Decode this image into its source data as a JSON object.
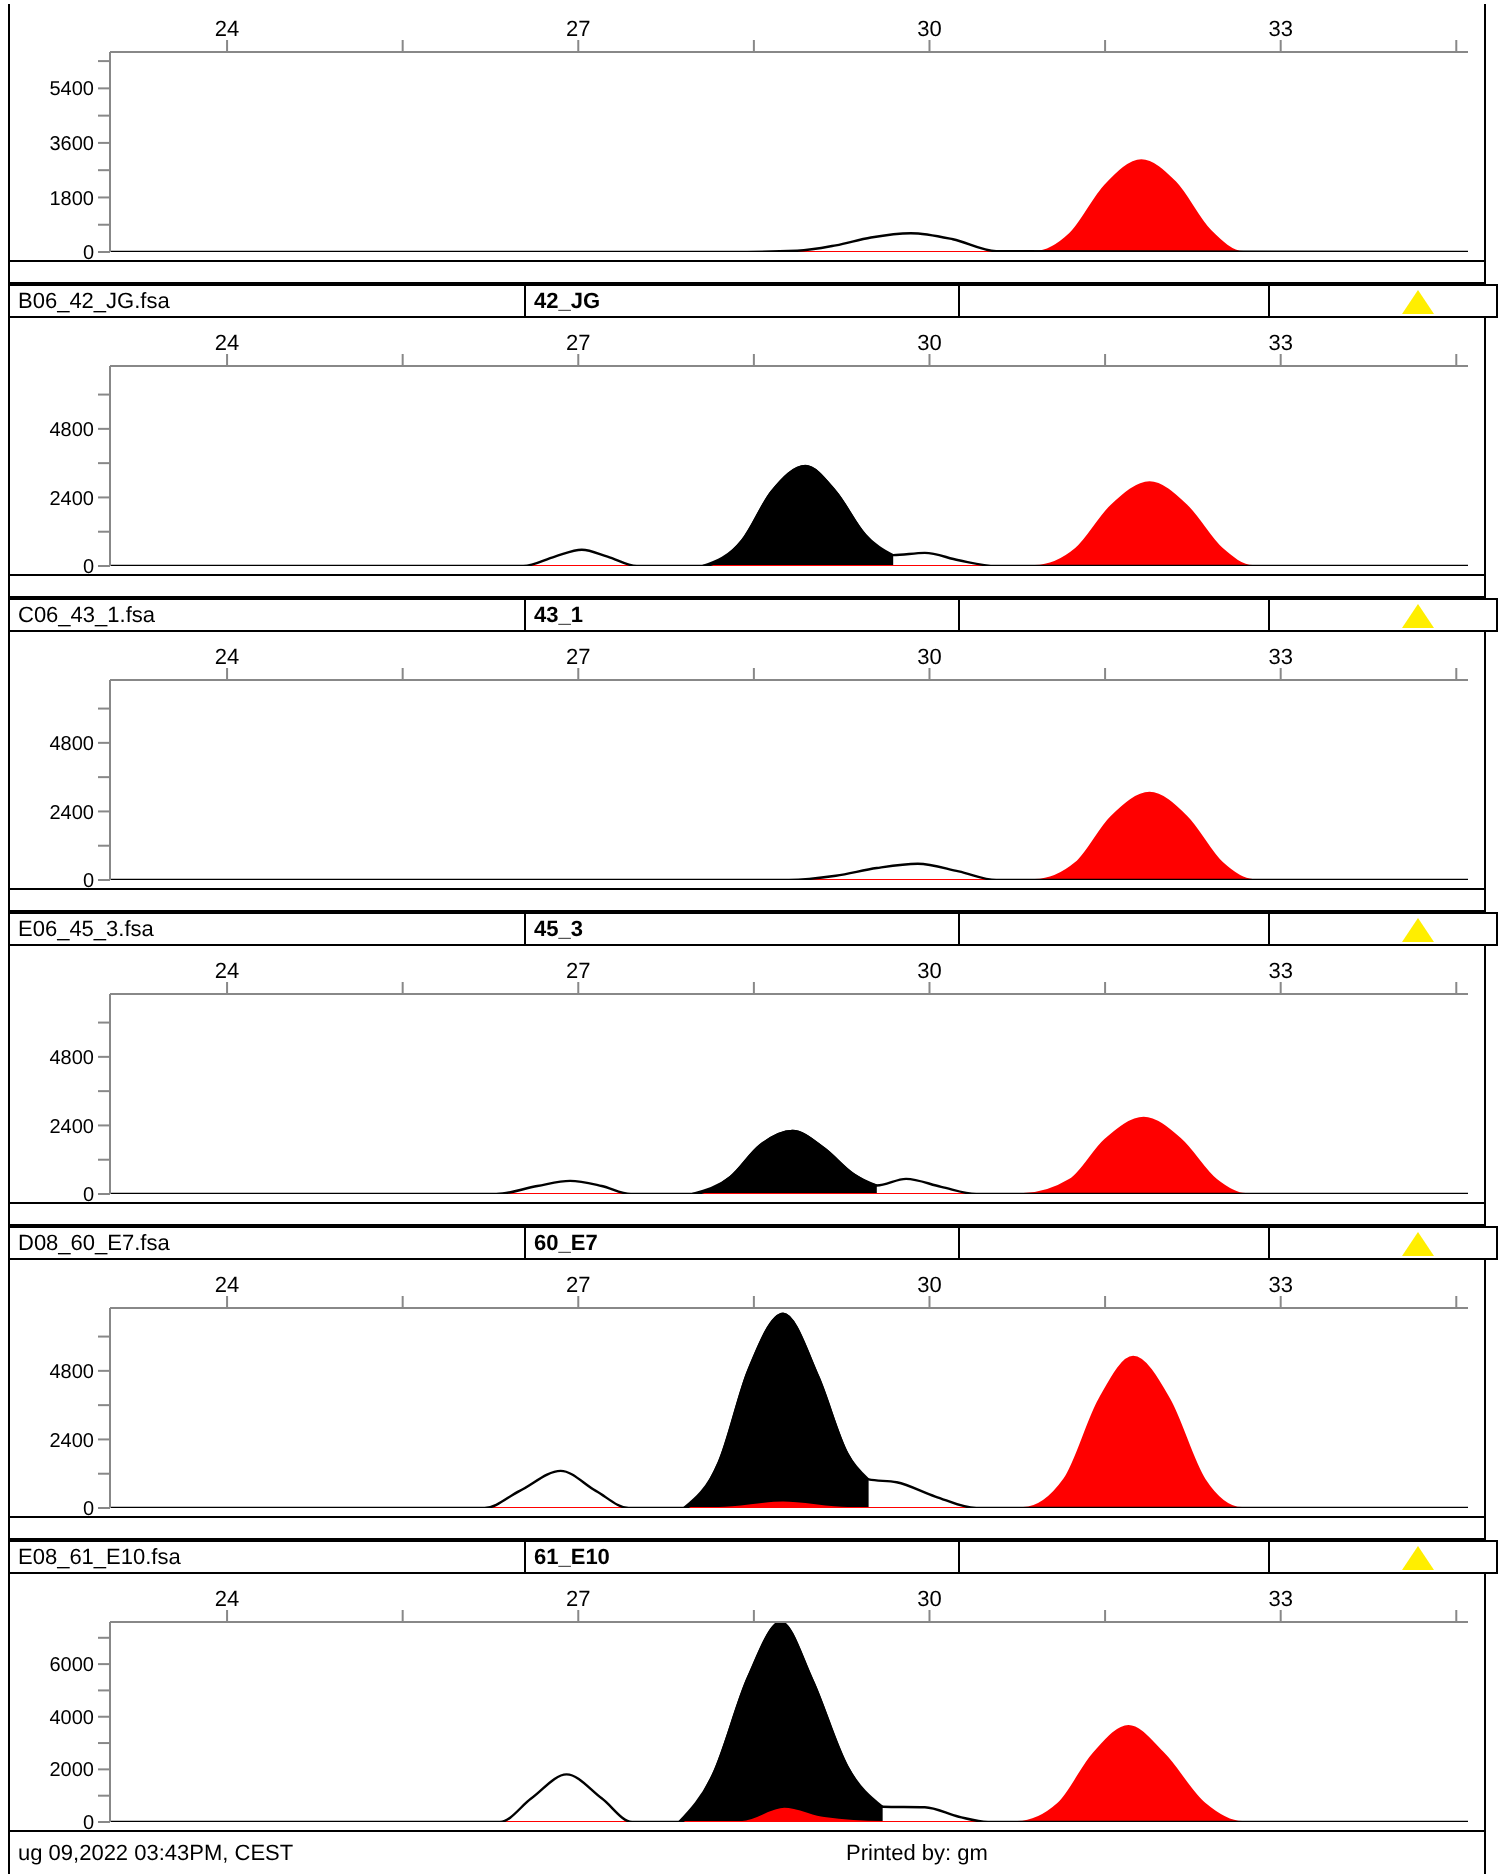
{
  "chart_data": [
    {
      "type": "area",
      "xlim": [
        23,
        34.6
      ],
      "xticks": [
        24,
        {
          "value": 25.5,
          "label": null
        },
        27,
        {
          "value": 28.5,
          "label": null
        },
        30,
        {
          "value": 31.5,
          "label": null
        },
        33,
        {
          "value": 34.5,
          "label": null
        }
      ],
      "ylim": [
        0,
        6600
      ],
      "yticks": [
        0,
        {
          "value": 900,
          "label": null
        },
        1800,
        {
          "value": 2700,
          "label": null
        },
        3600,
        {
          "value": 4500,
          "label": null
        },
        5400,
        {
          "value": 6300,
          "label": null
        }
      ],
      "series": [
        {
          "type": "line",
          "color": "#000000",
          "x": [
            23,
            28.3,
            28.87,
            29.2,
            29.5,
            29.84,
            30.2,
            30.57,
            34.6
          ],
          "values": [
            0,
            0,
            40,
            220,
            480,
            620,
            420,
            30,
            0
          ]
        },
        {
          "type": "area",
          "color": "#ff0000",
          "x": [
            23,
            30.9,
            31.2,
            31.5,
            31.81,
            32.1,
            32.4,
            32.68,
            34.6
          ],
          "values": [
            0,
            0,
            600,
            2200,
            3030,
            2300,
            700,
            0,
            0
          ]
        }
      ]
    },
    {
      "type": "area",
      "title": "B06_42_JG.fsa",
      "subtitle": "42_JG",
      "xlim": [
        23,
        34.6
      ],
      "xticks": [
        24,
        {
          "value": 25.5,
          "label": null
        },
        27,
        {
          "value": 28.5,
          "label": null
        },
        30,
        {
          "value": 31.5,
          "label": null
        },
        33,
        {
          "value": 34.5,
          "label": null
        }
      ],
      "ylim": [
        0,
        7000
      ],
      "yticks": [
        0,
        {
          "value": 1200,
          "label": null
        },
        2400,
        {
          "value": 3600,
          "label": null
        },
        4800,
        {
          "value": 6000,
          "label": null
        }
      ],
      "series": [
        {
          "type": "line",
          "color": "#000000",
          "x": [
            23,
            26.53,
            26.8,
            27.03,
            27.25,
            27.5,
            28.06,
            28.4,
            28.65,
            28.94,
            29.2,
            29.45,
            29.69,
            29.96,
            30.25,
            30.57,
            34.6
          ],
          "values": [
            0,
            0,
            330,
            570,
            330,
            0,
            0,
            900,
            2600,
            3500,
            2600,
            1100,
            380,
            460,
            200,
            0,
            0
          ]
        },
        {
          "type": "area",
          "color": "#000000",
          "x": [
            28.06,
            28.4,
            28.65,
            28.94,
            29.2,
            29.45,
            29.69
          ],
          "values": [
            0,
            900,
            2600,
            3500,
            2600,
            1100,
            380
          ]
        },
        {
          "type": "area",
          "color": "#ff0000",
          "x": [
            23,
            30.9,
            31.25,
            31.55,
            31.88,
            32.2,
            32.5,
            32.76,
            34.6
          ],
          "values": [
            0,
            0,
            600,
            2100,
            2930,
            2100,
            600,
            0,
            0
          ]
        }
      ]
    },
    {
      "type": "area",
      "title": "C06_43_1.fsa",
      "subtitle": "43_1",
      "xlim": [
        23,
        34.6
      ],
      "xticks": [
        24,
        {
          "value": 25.5,
          "label": null
        },
        27,
        {
          "value": 28.5,
          "label": null
        },
        30,
        {
          "value": 31.5,
          "label": null
        },
        33,
        {
          "value": 34.5,
          "label": null
        }
      ],
      "ylim": [
        0,
        7000
      ],
      "yticks": [
        0,
        {
          "value": 1200,
          "label": null
        },
        2400,
        {
          "value": 3600,
          "label": null
        },
        4800,
        {
          "value": 6000,
          "label": null
        }
      ],
      "series": [
        {
          "type": "line",
          "color": "#000000",
          "x": [
            23,
            28.8,
            29.2,
            29.55,
            29.9,
            30.25,
            30.57,
            34.6
          ],
          "values": [
            0,
            0,
            150,
            420,
            570,
            300,
            0,
            0
          ]
        },
        {
          "type": "area",
          "color": "#ff0000",
          "x": [
            23,
            30.9,
            31.25,
            31.55,
            31.88,
            32.2,
            32.5,
            32.76,
            34.6
          ],
          "values": [
            0,
            0,
            600,
            2200,
            3050,
            2200,
            600,
            0,
            0
          ]
        }
      ]
    },
    {
      "type": "area",
      "title": "E06_45_3.fsa",
      "subtitle": "45_3",
      "xlim": [
        23,
        34.6
      ],
      "xticks": [
        24,
        {
          "value": 25.5,
          "label": null
        },
        27,
        {
          "value": 28.5,
          "label": null
        },
        30,
        {
          "value": 31.5,
          "label": null
        },
        33,
        {
          "value": 34.5,
          "label": null
        }
      ],
      "ylim": [
        0,
        7000
      ],
      "yticks": [
        0,
        {
          "value": 1200,
          "label": null
        },
        2400,
        {
          "value": 3600,
          "label": null
        },
        4800,
        {
          "value": 6000,
          "label": null
        }
      ],
      "series": [
        {
          "type": "line",
          "color": "#000000",
          "x": [
            23,
            26.3,
            26.65,
            26.93,
            27.2,
            27.45,
            27.97,
            28.3,
            28.55,
            28.83,
            29.1,
            29.35,
            29.55,
            29.8,
            30.1,
            30.4,
            34.6
          ],
          "values": [
            0,
            0,
            280,
            460,
            280,
            0,
            0,
            600,
            1700,
            2210,
            1600,
            700,
            300,
            530,
            250,
            0,
            0
          ]
        },
        {
          "type": "area",
          "color": "#000000",
          "x": [
            27.97,
            28.3,
            28.55,
            28.83,
            29.1,
            29.35,
            29.55
          ],
          "values": [
            0,
            600,
            1700,
            2210,
            1600,
            700,
            300
          ]
        },
        {
          "type": "area",
          "color": "#ff0000",
          "x": [
            23,
            30.8,
            31.2,
            31.5,
            31.83,
            32.15,
            32.45,
            32.7,
            34.6
          ],
          "values": [
            0,
            0,
            500,
            1900,
            2670,
            1900,
            500,
            0,
            0
          ]
        }
      ]
    },
    {
      "type": "area",
      "title": "D08_60_E7.fsa",
      "subtitle": "60_E7",
      "xlim": [
        23,
        34.6
      ],
      "xticks": [
        24,
        {
          "value": 25.5,
          "label": null
        },
        27,
        {
          "value": 28.5,
          "label": null
        },
        30,
        {
          "value": 31.5,
          "label": null
        },
        33,
        {
          "value": 34.5,
          "label": null
        }
      ],
      "ylim": [
        0,
        7000
      ],
      "yticks": [
        0,
        {
          "value": 1200,
          "label": null
        },
        2400,
        {
          "value": 3600,
          "label": null
        },
        4800,
        {
          "value": 6000,
          "label": null
        }
      ],
      "series": [
        {
          "type": "line",
          "color": "#000000",
          "x": [
            23,
            26.2,
            26.5,
            26.85,
            27.15,
            27.43,
            27.9,
            28.2,
            28.45,
            28.75,
            29.05,
            29.3,
            29.48,
            29.72,
            30.05,
            30.4,
            34.6
          ],
          "values": [
            0,
            0,
            600,
            1300,
            600,
            0,
            0,
            1600,
            4800,
            6800,
            4600,
            1900,
            1000,
            900,
            400,
            0,
            0
          ]
        },
        {
          "type": "area",
          "color": "#000000",
          "x": [
            27.9,
            28.2,
            28.45,
            28.75,
            29.05,
            29.3,
            29.48
          ],
          "values": [
            0,
            1600,
            4800,
            6800,
            4600,
            1900,
            1000
          ]
        },
        {
          "type": "area",
          "color": "#ff0000",
          "x": [
            23,
            28.2,
            28.75,
            29.3,
            30.8,
            31.15,
            31.45,
            31.74,
            32.05,
            32.35,
            32.67,
            34.6
          ],
          "values": [
            0,
            0,
            190,
            0,
            0,
            1000,
            3800,
            5290,
            3800,
            1000,
            0,
            0
          ]
        }
      ]
    },
    {
      "type": "area",
      "title": "E08_61_E10.fsa",
      "subtitle": "61_E10",
      "xlim": [
        23,
        34.6
      ],
      "xticks": [
        24,
        {
          "value": 25.5,
          "label": null
        },
        27,
        {
          "value": 28.5,
          "label": null
        },
        30,
        {
          "value": 31.5,
          "label": null
        },
        33,
        {
          "value": 34.5,
          "label": null
        }
      ],
      "ylim": [
        0,
        7600
      ],
      "yticks": [
        0,
        {
          "value": 1000,
          "label": null
        },
        2000,
        {
          "value": 3000,
          "label": null
        },
        4000,
        {
          "value": 5000,
          "label": null
        },
        6000,
        {
          "value": 7000,
          "label": null
        }
      ],
      "annotations": [
        "ug 09,2022 03:43PM, CEST",
        "Printed by: gm"
      ],
      "series": [
        {
          "type": "line",
          "color": "#000000",
          "x": [
            23,
            26.33,
            26.6,
            26.9,
            27.2,
            27.46,
            27.86,
            28.15,
            28.45,
            28.73,
            29.0,
            29.3,
            29.6,
            29.96,
            30.25,
            30.5,
            34.6
          ],
          "values": [
            0,
            0,
            900,
            1810,
            900,
            0,
            0,
            1800,
            5500,
            7600,
            5400,
            2100,
            580,
            560,
            200,
            0,
            0
          ]
        },
        {
          "type": "area",
          "color": "#000000",
          "x": [
            27.86,
            28.15,
            28.45,
            28.73,
            29.0,
            29.3,
            29.6
          ],
          "values": [
            0,
            1800,
            5500,
            7600,
            5400,
            2100,
            580
          ]
        },
        {
          "type": "area",
          "color": "#ff0000",
          "x": [
            23,
            28.4,
            28.76,
            29.1,
            29.6,
            30.75,
            31.1,
            31.4,
            31.7,
            32.0,
            32.35,
            32.67,
            34.6
          ],
          "values": [
            0,
            0,
            500,
            150,
            0,
            0,
            700,
            2600,
            3650,
            2600,
            700,
            0,
            0
          ]
        }
      ]
    }
  ]
}
